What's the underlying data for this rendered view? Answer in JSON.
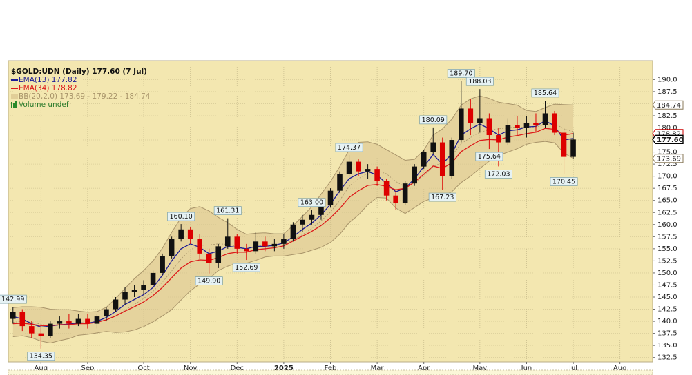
{
  "chart_data": {
    "type": "candlestick",
    "title": "$GOLD:UDN (Daily) 177.60 (7 Jul)",
    "volume_label": "Volume undef",
    "categories": [
      null,
      null,
      null,
      "Aug",
      null,
      null,
      null,
      null,
      "Sep",
      null,
      null,
      null,
      null,
      null,
      "Oct",
      null,
      null,
      null,
      null,
      "Nov",
      null,
      null,
      null,
      null,
      "Dec",
      null,
      null,
      null,
      null,
      "2025",
      null,
      null,
      null,
      null,
      "Feb",
      null,
      null,
      null,
      null,
      "Mar",
      null,
      null,
      null,
      null,
      "Apr",
      null,
      null,
      null,
      null,
      null,
      "May",
      null,
      null,
      null,
      null,
      "Jun",
      null,
      null,
      null,
      null,
      "Jul",
      null,
      null,
      null,
      null,
      "Aug",
      null,
      null,
      null
    ],
    "open": [
      140.5,
      142,
      139,
      137.5,
      137,
      139.5,
      140,
      139.5,
      140.5,
      139.5,
      141,
      142.5,
      144.5,
      146,
      146.5,
      147.5,
      150,
      153.5,
      157,
      159,
      157,
      154,
      152,
      155.5,
      157.5,
      155,
      154.5,
      156.5,
      155.5,
      156,
      157,
      160,
      161,
      162,
      164,
      167,
      170.5,
      173,
      171,
      171.5,
      169,
      166,
      164.5,
      168.5,
      172,
      175,
      177,
      170,
      177.5,
      184,
      181,
      182,
      178.5,
      177,
      180.5,
      180,
      181,
      180.5,
      183,
      179,
      174,
      null,
      null,
      null,
      null,
      null,
      null,
      null,
      null
    ],
    "high": [
      142.99,
      142.5,
      140,
      139,
      140,
      141,
      141.5,
      141.5,
      141.5,
      141.5,
      143,
      145,
      147,
      147.5,
      148.5,
      150.5,
      154,
      157.5,
      160.1,
      159.5,
      158,
      155,
      156,
      161.31,
      158,
      156,
      158.5,
      157.5,
      157,
      158,
      160.5,
      162,
      163,
      164.5,
      167.5,
      171,
      174.37,
      173.5,
      172.5,
      172,
      169.5,
      167,
      169,
      172.5,
      175.5,
      180.09,
      178,
      178,
      189.7,
      186,
      188.03,
      183,
      180,
      182,
      182.5,
      182.5,
      183,
      185.64,
      183.5,
      179.5,
      179,
      null,
      null,
      null,
      null,
      null,
      null,
      null,
      null
    ],
    "low": [
      139.5,
      138,
      136.5,
      134.35,
      136.5,
      138.5,
      138.5,
      139,
      138.5,
      138.5,
      140,
      142,
      143.5,
      145,
      145.5,
      147,
      149.5,
      153,
      156.5,
      156,
      153,
      149.9,
      151,
      155,
      154,
      152.69,
      154,
      154.5,
      154.5,
      155,
      156.5,
      158.5,
      160,
      161,
      163.5,
      166.5,
      170,
      170,
      169.5,
      168,
      165,
      163,
      164,
      168,
      171.5,
      174.5,
      167.23,
      169.5,
      177,
      178.5,
      179,
      175.64,
      172.03,
      176.5,
      178.5,
      178,
      179,
      180,
      178.5,
      170.45,
      173.5,
      null,
      null,
      null,
      null,
      null,
      null,
      null,
      null
    ],
    "close": [
      142,
      139,
      137.5,
      137,
      139.5,
      140,
      139.5,
      140.5,
      139.5,
      141,
      142.5,
      144.5,
      146,
      146.5,
      147.5,
      150,
      153.5,
      157,
      159,
      157,
      154,
      152,
      155.5,
      157.5,
      155,
      154.5,
      156.5,
      155.5,
      156,
      157,
      160,
      161,
      162,
      164,
      167,
      170.5,
      173,
      171,
      171.5,
      169,
      166,
      164.5,
      168.5,
      172,
      175,
      177,
      170,
      177.5,
      184,
      181,
      182,
      178.5,
      177,
      180.5,
      180,
      181,
      180.5,
      183,
      179,
      174,
      177.6,
      null,
      null,
      null,
      null,
      null,
      null,
      null,
      null
    ],
    "up_color": "#111111",
    "down_color": "#dd0000",
    "series": [
      {
        "name": "EMA(13) 177.82",
        "color": "#1c1c96",
        "values": [
          141,
          140.5,
          139.5,
          138.8,
          139,
          139.3,
          139.4,
          139.7,
          139.6,
          140,
          140.8,
          142,
          143.5,
          144.5,
          145.5,
          147,
          149.5,
          152.5,
          155,
          156,
          155.3,
          154,
          154.5,
          155.5,
          155.3,
          155,
          155.5,
          155.5,
          155.7,
          156.2,
          157.5,
          159,
          160.3,
          162,
          164.2,
          167,
          169.5,
          170.5,
          171,
          170.2,
          168.5,
          166.8,
          167.5,
          169.5,
          172,
          174.5,
          172.5,
          174.7,
          178.5,
          179.8,
          180.8,
          179.8,
          178.5,
          179.4,
          179.6,
          180.2,
          180.3,
          181.5,
          180.4,
          177.5,
          177.82,
          null,
          null,
          null,
          null,
          null,
          null,
          null,
          null
        ]
      },
      {
        "name": "EMA(34) 178.82",
        "color": "#dd1a1a",
        "values": [
          139.5,
          139.6,
          139.4,
          139.1,
          139.1,
          139.3,
          139.3,
          139.5,
          139.5,
          139.8,
          140.3,
          141.1,
          142.1,
          143,
          144,
          145.3,
          147,
          149,
          151,
          152.3,
          152.7,
          152.6,
          153.2,
          154,
          154.3,
          154.3,
          154.8,
          155,
          155.2,
          155.6,
          156.6,
          157.6,
          158.6,
          159.8,
          161.4,
          163.3,
          165.6,
          167,
          168.1,
          168.3,
          167.9,
          167.2,
          167.5,
          168.8,
          170.4,
          172.1,
          171.6,
          172.8,
          175.1,
          176.3,
          177.4,
          177.6,
          177.5,
          178.1,
          178.4,
          178.8,
          179.1,
          179.9,
          179.7,
          178.5,
          178.82,
          null,
          null,
          null,
          null,
          null,
          null,
          null,
          null
        ]
      }
    ],
    "bands": {
      "name": "BB(20,2.0) 173.69 - 179.22 - 184.74",
      "color": "#a8946a",
      "fill": "#d9c38e",
      "upper": [
        142.8,
        143,
        143,
        142.9,
        142.5,
        142.4,
        142.4,
        142.1,
        141.9,
        142,
        142.9,
        144.7,
        146.8,
        148.8,
        150.5,
        152.5,
        155.1,
        158.4,
        161.4,
        163.3,
        163.7,
        162.8,
        161.5,
        160.4,
        159,
        158,
        158.2,
        158.3,
        158.1,
        158.1,
        159.8,
        161.7,
        163.7,
        166.3,
        168.9,
        172,
        175.4,
        177,
        177.1,
        176.6,
        175.5,
        174.4,
        173.3,
        173.5,
        175.4,
        178.5,
        179.8,
        181.8,
        184.7,
        186,
        186.6,
        186.1,
        185.3,
        185,
        184.7,
        183.6,
        183.4,
        184.2,
        184.9,
        184.8,
        184.74,
        null,
        null,
        null,
        null,
        null,
        null,
        null,
        null
      ],
      "middle": [
        139.8,
        140,
        139.8,
        139.4,
        139,
        139.2,
        139.4,
        139.6,
        139.6,
        139.8,
        140.4,
        141.2,
        142.3,
        143.5,
        144.7,
        146.2,
        148.1,
        150.4,
        152.9,
        154.8,
        155.7,
        155.8,
        156,
        155.9,
        155.5,
        155,
        155.4,
        155.8,
        155.8,
        155.8,
        156.8,
        157.9,
        159.2,
        160.8,
        162.6,
        165,
        167.9,
        169.5,
        170.6,
        171.1,
        170.5,
        168.9,
        167.8,
        168.5,
        170.1,
        172,
        172.8,
        174.3,
        176.7,
        178,
        179.1,
        179.6,
        179.8,
        180,
        180.2,
        180.1,
        180.2,
        180.7,
        180.9,
        179.8,
        179.22,
        null,
        null,
        null,
        null,
        null,
        null,
        null,
        null
      ],
      "lower": [
        136.8,
        137,
        136.6,
        135.9,
        135.5,
        136,
        136.4,
        137.1,
        137.3,
        137.6,
        137.9,
        137.7,
        137.8,
        138.2,
        138.9,
        139.9,
        141.1,
        142.4,
        144.4,
        146.3,
        147.7,
        148.8,
        150.5,
        151.4,
        152,
        152,
        152.6,
        153.3,
        153.5,
        153.5,
        153.8,
        154.1,
        154.7,
        155.3,
        156.3,
        158,
        160.4,
        162,
        164.1,
        165.6,
        165.5,
        163.4,
        162.3,
        163.5,
        164.8,
        165.5,
        165.8,
        166.8,
        168.7,
        170,
        171.6,
        173.1,
        174.3,
        175,
        175.7,
        176.6,
        177,
        177.2,
        176.9,
        174.8,
        173.69,
        null,
        null,
        null,
        null,
        null,
        null,
        null,
        null
      ]
    },
    "ylim": [
      131.6,
      193.9
    ],
    "yticks": [
      132.5,
      {
        "value": 135,
        "label": "135.0"
      },
      137.5,
      {
        "value": 140,
        "label": "140.0"
      },
      142.5,
      {
        "value": 145,
        "label": "145.0"
      },
      147.5,
      {
        "value": 150,
        "label": "150.0"
      },
      152.5,
      {
        "value": 155,
        "label": "155.0"
      },
      157.5,
      {
        "value": 160,
        "label": "160.0"
      },
      162.5,
      {
        "value": 165,
        "label": "165.0"
      },
      167.5,
      {
        "value": 170,
        "label": "170.0"
      },
      172.5,
      {
        "value": 175,
        "label": "175.0"
      },
      177.5,
      {
        "value": 180,
        "label": "180.0"
      },
      182.5,
      {
        "value": 185,
        "label": "185.0"
      },
      187.5,
      {
        "value": 190,
        "label": "190.0"
      }
    ],
    "grid": true,
    "annotations": [
      142.99,
      134.35,
      {
        "value": 160.1,
        "label": "160.10"
      },
      161.31,
      {
        "value": 149.9,
        "label": "149.90"
      },
      152.69,
      174.37,
      {
        "value": 163,
        "label": "163.00"
      },
      180.09,
      167.23,
      {
        "value": 189.7,
        "label": "189.70"
      },
      188.03,
      175.64,
      172.03,
      185.64,
      170.45
    ],
    "price_tags": [
      {
        "value": 184.74,
        "color": "#8a7a5a"
      },
      {
        "value": 178.82,
        "color": "#cc0000"
      },
      {
        "value": 177.6,
        "label": "177.60",
        "color": "#000000"
      },
      {
        "value": 173.69,
        "color": "#8a7a5a"
      }
    ]
  }
}
